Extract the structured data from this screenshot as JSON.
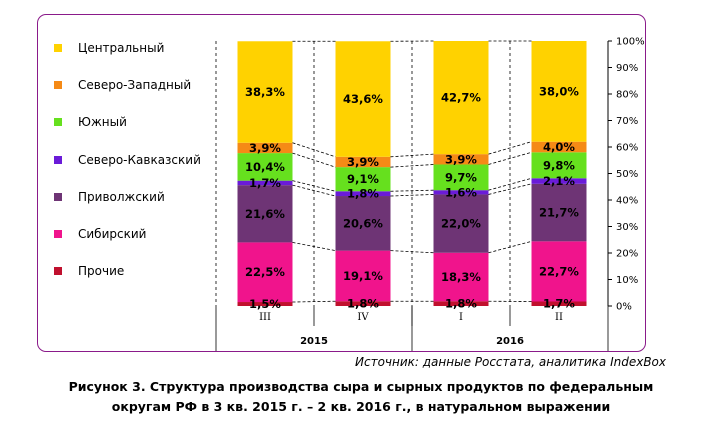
{
  "chart_data": {
    "type": "bar",
    "stacked": true,
    "categories": [
      "III",
      "IV",
      "I",
      "II"
    ],
    "groups": [
      {
        "label": "2015",
        "categories": [
          "III",
          "IV"
        ]
      },
      {
        "label": "2016",
        "categories": [
          "I",
          "II"
        ]
      }
    ],
    "series": [
      {
        "name": "Прочие",
        "color": "#c0102e",
        "values": [
          1.5,
          1.8,
          1.8,
          1.7
        ],
        "labels": [
          "1,5%",
          "1,8%",
          "1,8%",
          "1,7%"
        ]
      },
      {
        "name": "Сибирский",
        "color": "#f0148c",
        "values": [
          22.5,
          19.1,
          18.3,
          22.7
        ],
        "labels": [
          "22,5%",
          "19,1%",
          "18,3%",
          "22,7%"
        ]
      },
      {
        "name": "Приволжский",
        "color": "#6e3475",
        "values": [
          21.6,
          20.6,
          22.0,
          21.7
        ],
        "labels": [
          "21,6%",
          "20,6%",
          "22,0%",
          "21,7%"
        ]
      },
      {
        "name": "Северо-Кавказский",
        "color": "#6a1bd8",
        "values": [
          1.7,
          1.8,
          1.6,
          2.1
        ],
        "labels": [
          "1,7%",
          "1,8%",
          "1,6%",
          "2,1%"
        ]
      },
      {
        "name": "Южный",
        "color": "#66e01e",
        "values": [
          10.4,
          9.1,
          9.7,
          9.8
        ],
        "labels": [
          "10,4%",
          "9,1%",
          "9,7%",
          "9,8%"
        ]
      },
      {
        "name": "Северо-Западный",
        "color": "#f58a16",
        "values": [
          3.9,
          3.9,
          3.9,
          4.0
        ],
        "labels": [
          "3,9%",
          "3,9%",
          "3,9%",
          "4,0%"
        ]
      },
      {
        "name": "Центральный",
        "color": "#ffd200",
        "values": [
          38.3,
          43.6,
          42.7,
          38.0
        ],
        "labels": [
          "38,3%",
          "43,6%",
          "42,7%",
          "38,0%"
        ]
      }
    ],
    "legend": [
      "Центральный",
      "Северо-Западный",
      "Южный",
      "Северо-Кавказский",
      "Приволжский",
      "Сибирский",
      "Прочие"
    ],
    "legend_position": "left",
    "ylim": [
      0,
      100
    ],
    "y_ticks": [
      "0%",
      "10%",
      "20%",
      "30%",
      "40%",
      "50%",
      "60%",
      "70%",
      "80%",
      "90%",
      "100%"
    ],
    "series_lines": true
  },
  "source": "Источник: данные Росстата, аналитика IndexBox",
  "caption_line1": "Рисунок 3. Структура производства сыра и сырных продуктов по федеральным",
  "caption_line2": "округам РФ в 3 кв. 2015 г. – 2 кв. 2016 г., в натуральном выражении"
}
